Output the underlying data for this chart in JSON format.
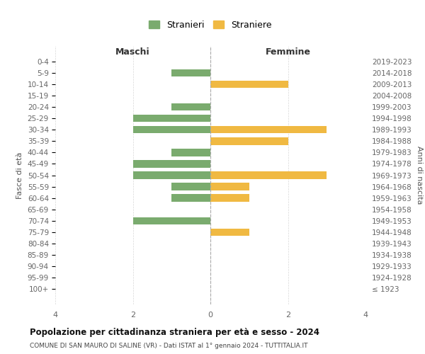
{
  "age_groups": [
    "0-4",
    "5-9",
    "10-14",
    "15-19",
    "20-24",
    "25-29",
    "30-34",
    "35-39",
    "40-44",
    "45-49",
    "50-54",
    "55-59",
    "60-64",
    "65-69",
    "70-74",
    "75-79",
    "80-84",
    "85-89",
    "90-94",
    "95-99",
    "100+"
  ],
  "birth_years": [
    "2019-2023",
    "2014-2018",
    "2009-2013",
    "2004-2008",
    "1999-2003",
    "1994-1998",
    "1989-1993",
    "1984-1988",
    "1979-1983",
    "1974-1978",
    "1969-1973",
    "1964-1968",
    "1959-1963",
    "1954-1958",
    "1949-1953",
    "1944-1948",
    "1939-1943",
    "1934-1938",
    "1929-1933",
    "1924-1928",
    "≤ 1923"
  ],
  "maschi": [
    0,
    1,
    0,
    0,
    1,
    2,
    2,
    0,
    1,
    2,
    2,
    1,
    1,
    0,
    2,
    0,
    0,
    0,
    0,
    0,
    0
  ],
  "femmine": [
    0,
    0,
    2,
    0,
    0,
    0,
    3,
    2,
    0,
    0,
    3,
    1,
    1,
    0,
    0,
    1,
    0,
    0,
    0,
    0,
    0
  ],
  "color_maschi": "#7aab6e",
  "color_femmine": "#f0b942",
  "title": "Popolazione per cittadinanza straniera per età e sesso - 2024",
  "subtitle": "COMUNE DI SAN MAURO DI SALINE (VR) - Dati ISTAT al 1° gennaio 2024 - TUTTITALIA.IT",
  "legend_maschi": "Stranieri",
  "legend_femmine": "Straniere",
  "xlabel_left": "Maschi",
  "xlabel_right": "Femmine",
  "ylabel_left": "Fasce di età",
  "ylabel_right": "Anni di nascita",
  "xlim": 4,
  "background_color": "#ffffff",
  "grid_color": "#d8d8d8"
}
